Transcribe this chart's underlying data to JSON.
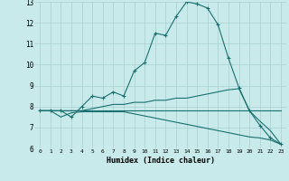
{
  "xlabel": "Humidex (Indice chaleur)",
  "background_color": "#c8eaea",
  "grid_color": "#a8d0d0",
  "line_color": "#1a7070",
  "xlim": [
    -0.5,
    23.5
  ],
  "ylim": [
    6,
    13
  ],
  "xticks": [
    0,
    1,
    2,
    3,
    4,
    5,
    6,
    7,
    8,
    9,
    10,
    11,
    12,
    13,
    14,
    15,
    16,
    17,
    18,
    19,
    20,
    21,
    22,
    23
  ],
  "yticks": [
    6,
    7,
    8,
    9,
    10,
    11,
    12,
    13
  ],
  "series": [
    {
      "x": [
        0,
        1,
        2,
        3,
        4,
        5,
        6,
        7,
        8,
        9,
        10,
        11,
        12,
        13,
        14,
        15,
        16,
        17,
        18,
        19,
        20,
        21,
        22,
        23
      ],
      "y": [
        7.8,
        7.8,
        7.8,
        7.5,
        8.0,
        8.5,
        8.4,
        8.7,
        8.5,
        9.7,
        10.1,
        11.5,
        11.4,
        12.3,
        13.0,
        12.9,
        12.7,
        11.9,
        10.3,
        8.9,
        7.8,
        7.1,
        6.5,
        6.2
      ],
      "marker": true
    },
    {
      "x": [
        0,
        1,
        2,
        3,
        4,
        5,
        6,
        7,
        8,
        9,
        10,
        11,
        12,
        13,
        14,
        15,
        16,
        17,
        18,
        19,
        20,
        21,
        22,
        23
      ],
      "y": [
        7.8,
        7.8,
        7.8,
        7.8,
        7.8,
        7.9,
        8.0,
        8.1,
        8.1,
        8.2,
        8.2,
        8.3,
        8.3,
        8.4,
        8.4,
        8.5,
        8.6,
        8.7,
        8.8,
        8.85,
        7.8,
        7.3,
        6.85,
        6.2
      ],
      "marker": false
    },
    {
      "x": [
        0,
        1,
        2,
        3,
        4,
        5,
        6,
        7,
        8,
        9,
        10,
        11,
        12,
        13,
        14,
        15,
        16,
        17,
        18,
        19,
        20,
        21,
        22,
        23
      ],
      "y": [
        7.8,
        7.8,
        7.5,
        7.7,
        7.75,
        7.75,
        7.75,
        7.75,
        7.75,
        7.65,
        7.55,
        7.45,
        7.35,
        7.25,
        7.15,
        7.05,
        6.95,
        6.85,
        6.75,
        6.65,
        6.55,
        6.5,
        6.4,
        6.2
      ],
      "marker": false
    },
    {
      "x": [
        0,
        1,
        2,
        3,
        4,
        5,
        6,
        7,
        8,
        9,
        10,
        11,
        12,
        13,
        14,
        15,
        16,
        17,
        18,
        19,
        20,
        21,
        22,
        23
      ],
      "y": [
        7.8,
        7.8,
        7.8,
        7.8,
        7.8,
        7.8,
        7.8,
        7.8,
        7.8,
        7.8,
        7.8,
        7.8,
        7.8,
        7.8,
        7.8,
        7.8,
        7.8,
        7.8,
        7.8,
        7.8,
        7.8,
        7.8,
        7.8,
        7.8
      ],
      "marker": false
    }
  ]
}
